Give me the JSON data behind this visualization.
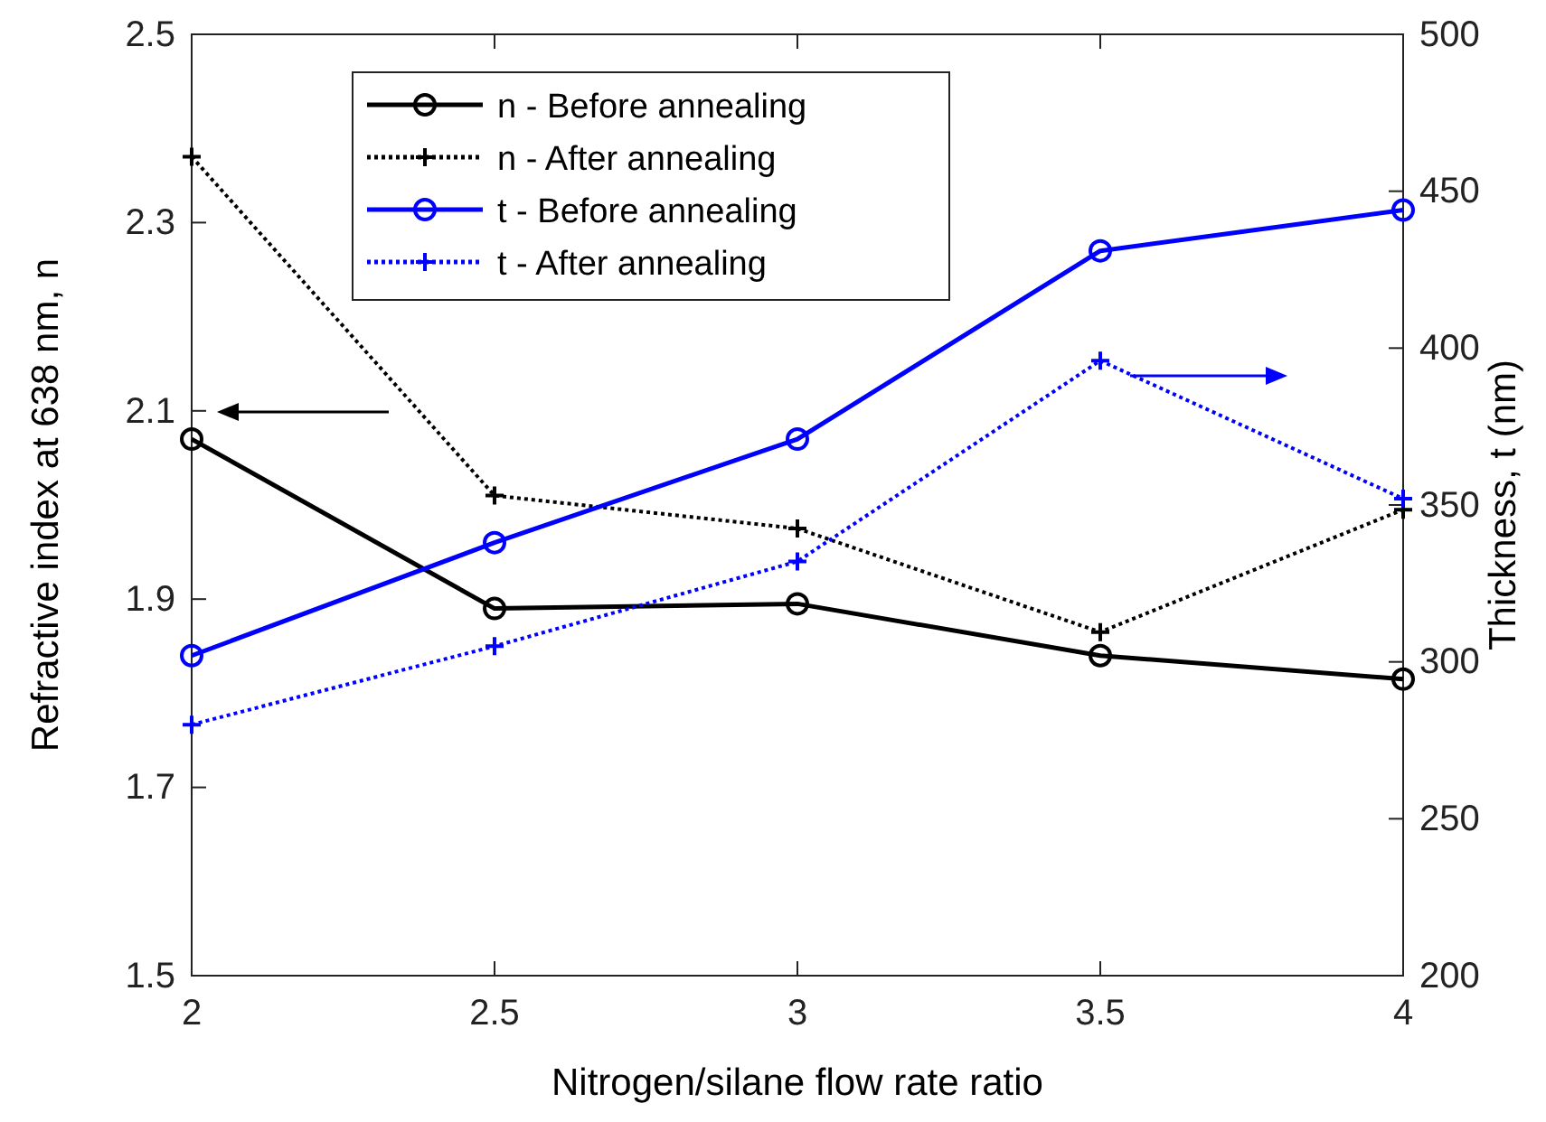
{
  "chart_data": {
    "type": "line",
    "xlabel": "Nitrogen/silane flow rate ratio",
    "ylabel": "Refractive index at 638 nm,  n",
    "y2label": "Thickness,  t (nm)",
    "x": [
      2,
      2.5,
      3,
      3.5,
      4
    ],
    "xlim": [
      2,
      4
    ],
    "xticks": [
      2,
      2.5,
      3,
      3.5,
      4
    ],
    "ylim": [
      1.5,
      2.5
    ],
    "yticks": [
      1.5,
      1.7,
      1.9,
      2.1,
      2.3,
      2.5
    ],
    "y2lim": [
      200,
      500
    ],
    "y2ticks": [
      200,
      250,
      300,
      350,
      400,
      450,
      500
    ],
    "grid": false,
    "legend": "top",
    "series": [
      {
        "name": "n - Before annealing",
        "color": "#000000",
        "values": [
          2.07,
          1.89,
          1.895,
          1.84,
          1.815
        ],
        "marker": "circle",
        "line_style": "solid"
      },
      {
        "name": "n - After annealing",
        "color": "#000000",
        "values": [
          2.37,
          2.01,
          1.975,
          1.865,
          1.995
        ],
        "marker": "cross",
        "line_style": "dotted"
      },
      {
        "name": "t - Before annealing",
        "color": "#0000ff",
        "values": [
          302,
          338,
          371,
          431,
          444
        ],
        "marker": "circle",
        "line_style": "solid",
        "axis": "y2"
      },
      {
        "name": "t - After annealing",
        "color": "#0000ff",
        "values": [
          280,
          305,
          332,
          396,
          352
        ],
        "marker": "cross",
        "line_style": "dotted",
        "axis": "y2"
      }
    ]
  }
}
